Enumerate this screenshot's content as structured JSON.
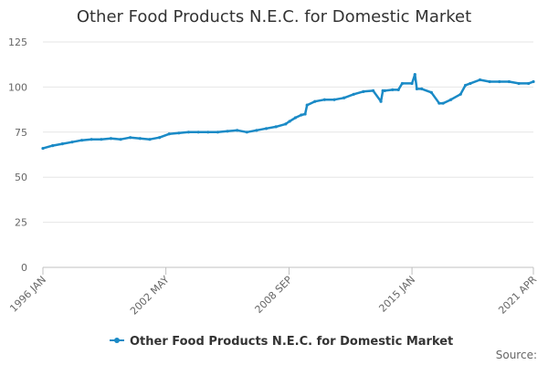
{
  "chart_data": {
    "type": "line",
    "title": "Other Food Products N.E.C. for Domestic Market",
    "xlabel": "",
    "ylabel": "",
    "ylim": [
      0,
      125
    ],
    "yticks": [
      0,
      25,
      50,
      75,
      100,
      125
    ],
    "x_range": [
      1996.0,
      2021.25
    ],
    "xticks": [
      {
        "label": "1996 JAN",
        "x": 1996.0
      },
      {
        "label": "2002 MAY",
        "x": 2002.33
      },
      {
        "label": "2008 SEP",
        "x": 2008.67
      },
      {
        "label": "2015 JAN",
        "x": 2015.0
      },
      {
        "label": "2021 APR",
        "x": 2021.25
      }
    ],
    "grid": true,
    "legend_position": "bottom-center",
    "series": [
      {
        "name": "Other Food Products N.E.C. for Domestic Market",
        "color": "#1a8ac6",
        "x": [
          1996.0,
          1996.5,
          1997.0,
          1997.5,
          1998.0,
          1998.5,
          1999.0,
          1999.5,
          2000.0,
          2000.5,
          2001.0,
          2001.5,
          2002.0,
          2002.5,
          2003.0,
          2003.5,
          2004.0,
          2004.5,
          2005.0,
          2005.5,
          2006.0,
          2006.5,
          2007.0,
          2007.5,
          2008.0,
          2008.5,
          2008.7,
          2009.0,
          2009.3,
          2009.5,
          2009.6,
          2010.0,
          2010.5,
          2011.0,
          2011.5,
          2012.0,
          2012.5,
          2013.0,
          2013.4,
          2013.5,
          2013.6,
          2014.0,
          2014.3,
          2014.5,
          2015.0,
          2015.15,
          2015.25,
          2015.5,
          2016.0,
          2016.4,
          2016.6,
          2017.0,
          2017.5,
          2017.75,
          2018.0,
          2018.5,
          2019.0,
          2019.5,
          2020.0,
          2020.5,
          2021.0,
          2021.25
        ],
        "values": [
          66,
          67.5,
          68.5,
          69.5,
          70.5,
          71,
          71,
          71.5,
          71,
          72,
          71.5,
          71,
          72,
          74,
          74.5,
          75,
          75,
          75,
          75,
          75.5,
          76,
          75,
          76,
          77,
          78,
          79.5,
          81,
          83,
          84.5,
          85,
          90,
          92,
          93,
          93,
          94,
          96,
          97.5,
          98,
          92,
          98,
          98,
          98.5,
          98.5,
          102,
          102,
          107,
          99,
          99,
          97,
          91,
          91,
          93,
          96,
          101,
          102,
          104,
          103,
          103,
          103,
          102,
          102,
          103
        ]
      }
    ]
  },
  "source_label": "Source:"
}
